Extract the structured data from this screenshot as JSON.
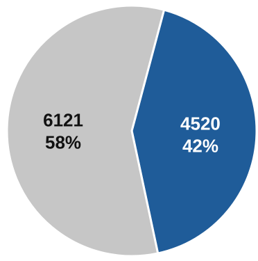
{
  "chart_data": {
    "type": "pie",
    "slices": [
      {
        "value": 4520,
        "label": "4520",
        "percent_label": "42%",
        "color": "#1f5c99",
        "text_color": "#ffffff"
      },
      {
        "value": 6121,
        "label": "6121",
        "percent_label": "58%",
        "color": "#c6c6c6",
        "text_color": "#111111"
      }
    ],
    "title": "",
    "legend": "none"
  }
}
